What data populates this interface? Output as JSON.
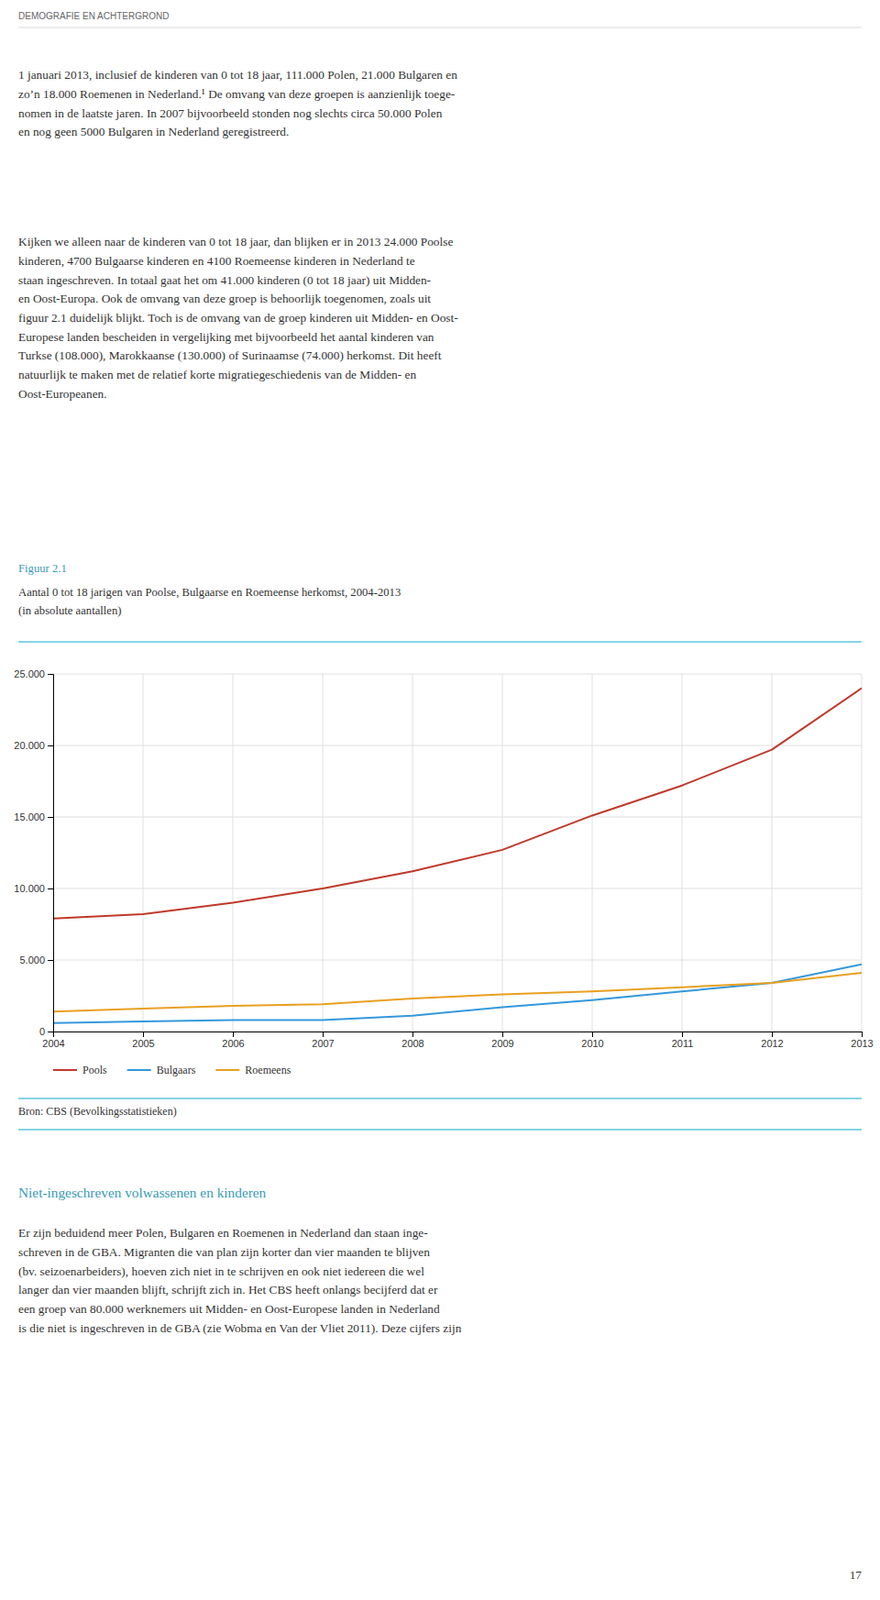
{
  "header": "DEMOGRAFIE EN ACHTERGROND",
  "body": [
    [
      "1 januari 2013, inclusief de kinderen van 0 tot 18 jaar, 111.000 Polen, 21.000 Bulgaren en",
      "zo’n 18.000 Roemenen in Nederland.¹ De omvang van deze groepen is aanzienlijk toege-",
      "nomen in de laatste jaren. In 2007 bijvoorbeeld stonden nog slechts circa 50.000 Polen",
      "en nog geen 5000 Bulgaren in Nederland geregistreerd."
    ],
    [
      "Kijken we alleen naar de kinderen van 0 tot 18 jaar, dan blijken er in 2013 24.000 Poolse",
      "kinderen, 4700 Bulgaarse kinderen en 4100 Roemeense kinderen in Nederland te",
      "staan ingeschreven. In totaal gaat het om 41.000 kinderen (0 tot 18 jaar) uit Midden-",
      "en Oost-Europa. Ook de omvang van deze groep is behoorlijk toegenomen, zoals uit",
      "figuur 2.1 duidelijk blijkt. Toch is de omvang van de groep kinderen uit Midden- en Oost-",
      "Europese landen bescheiden in vergelijking met bijvoorbeeld het aantal kinderen van",
      "Turkse (108.000), Marokkaanse (130.000) of Surinaamse (74.000) herkomst. Dit heeft",
      "natuurlijk te maken met de relatief korte migratiegeschiedenis van de Midden- en",
      "Oost-Europeanen."
    ]
  ],
  "figure_label": "Figuur 2.1",
  "chart_data": {
    "type": "line",
    "title": "Aantal 0 tot 18 jarigen van Poolse, Bulgaarse en Roemeense herkomst, 2004-2013",
    "subtitle": "(in absolute aantallen)",
    "x": [
      2004,
      2005,
      2006,
      2007,
      2008,
      2009,
      2010,
      2011,
      2012,
      2013
    ],
    "xlim": [
      2004,
      2013
    ],
    "xticks": [
      2004,
      2005,
      2006,
      2007,
      2008,
      2009,
      2010,
      2011,
      2012,
      2013
    ],
    "ylim": [
      0,
      25000
    ],
    "yticks": [
      0,
      {
        "value": 5000,
        "label": "5.000"
      },
      {
        "value": 10000,
        "label": "10.000"
      },
      {
        "value": 15000,
        "label": "15.000"
      },
      {
        "value": 20000,
        "label": "20.000"
      },
      {
        "value": 25000,
        "label": "25.000"
      }
    ],
    "grid": true,
    "legend": "bottom",
    "series": [
      {
        "name": "Pools",
        "color": "#c0392b",
        "values": [
          7900,
          8200,
          9000,
          10000,
          11200,
          12700,
          15100,
          17200,
          19700,
          24000
        ]
      },
      {
        "name": "Bulgaars",
        "color": "#3498db",
        "values": [
          600,
          700,
          800,
          800,
          1100,
          1700,
          2200,
          2800,
          3400,
          4700
        ]
      },
      {
        "name": "Roemeens",
        "color": "#e8a020",
        "values": [
          1400,
          1600,
          1800,
          1900,
          2300,
          2600,
          2800,
          3100,
          3400,
          4100
        ]
      }
    ]
  },
  "source": "Bron: CBS (Bevolkingsstatistieken)",
  "section_heading": "Niet-ingeschreven volwassenen en kinderen",
  "footer_body": [
    "Er zijn beduidend meer Polen, Bulgaren en Roemenen in Nederland dan staan inge-",
    "schreven in de GBA. Migranten die van plan zijn korter dan vier maanden te blijven",
    "(bv. seizoenarbeiders), hoeven zich niet in te schrijven en ook niet iedereen die wel",
    "langer dan vier maanden blijft, schrijft zich in. Het CBS heeft onlangs becijferd dat er",
    "een groep van 80.000 werknemers uit Midden- en Oost-Europese landen in Nederland",
    "is die niet is ingeschreven in de GBA (zie Wobma en Van der Vliet 2011). Deze cijfers zijn"
  ],
  "page_number": "17"
}
